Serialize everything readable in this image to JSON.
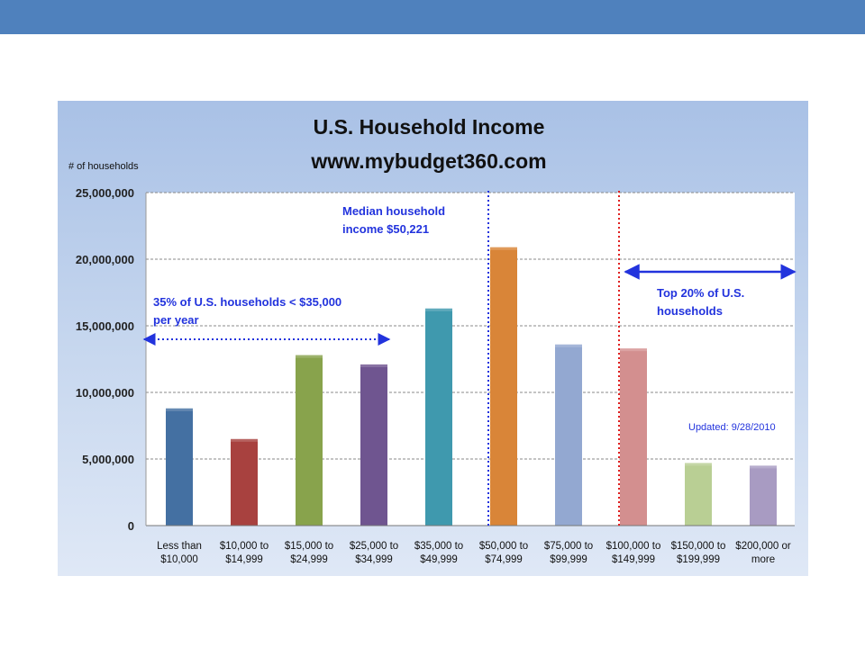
{
  "chart_data": {
    "type": "bar",
    "title": "U.S. Household Income",
    "subtitle": "www.mybudget360.com",
    "ylabel": "# of households",
    "ylim": [
      0,
      25000000
    ],
    "y_ticks": [
      "0",
      "5,000,000",
      "10,000,000",
      "15,000,000",
      "20,000,000",
      "25,000,000"
    ],
    "y_tick_values": [
      0,
      5000000,
      10000000,
      15000000,
      20000000,
      25000000
    ],
    "grid": true,
    "categories": [
      [
        "Less than",
        "$10,000"
      ],
      [
        "$10,000 to",
        "$14,999"
      ],
      [
        "$15,000 to",
        "$24,999"
      ],
      [
        "$25,000 to",
        "$34,999"
      ],
      [
        "$35,000 to",
        "$49,999"
      ],
      [
        "$50,000 to",
        "$74,999"
      ],
      [
        "$75,000 to",
        "$99,999"
      ],
      [
        "$100,000 to",
        "$149,999"
      ],
      [
        "$150,000 to",
        "$199,999"
      ],
      [
        "$200,000 or",
        "more"
      ]
    ],
    "values": [
      8800000,
      6500000,
      12800000,
      12100000,
      16300000,
      20900000,
      13600000,
      13300000,
      4700000,
      4500000
    ],
    "colors": [
      "#4470a2",
      "#a8413f",
      "#88a34c",
      "#6f5590",
      "#3f99ae",
      "#d98538",
      "#93a8d1",
      "#d38f8f",
      "#b9cf94",
      "#a89bc2"
    ],
    "annotations": {
      "median": {
        "lines": [
          "Median household",
          "income $50,221"
        ],
        "color": "#2233dd"
      },
      "lower": {
        "lines": [
          "35% of U.S. households < $35,000",
          "per year"
        ],
        "color": "#2233dd"
      },
      "top": {
        "lines": [
          "Top 20% of U.S.",
          "households"
        ],
        "color": "#2233dd"
      },
      "updated": "Updated:  9/28/2010"
    }
  }
}
